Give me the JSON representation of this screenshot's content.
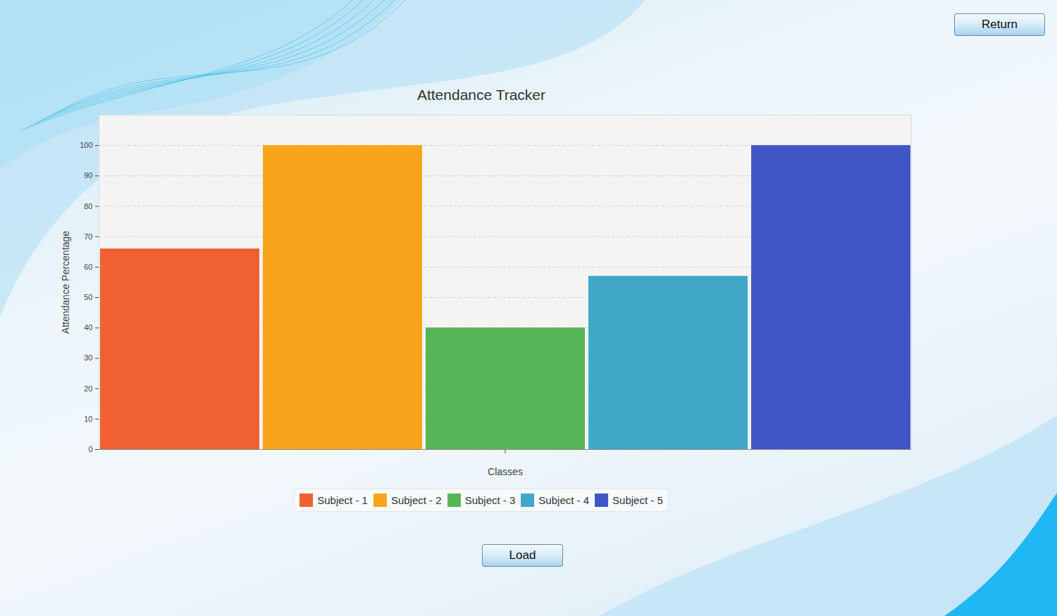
{
  "chart_data": {
    "type": "bar",
    "title": "Attendance Tracker",
    "x_label": "Classes",
    "y_label": "Attendance Percentage",
    "categories": [
      null
    ],
    "series": [
      {
        "name": "Subject - 1",
        "color": "#f06030",
        "values": [
          66
        ]
      },
      {
        "name": "Subject - 2",
        "color": "#f8a51c",
        "values": [
          100
        ]
      },
      {
        "name": "Subject - 3",
        "color": "#57b557",
        "values": [
          40
        ]
      },
      {
        "name": "Subject - 4",
        "color": "#41a7c6",
        "values": [
          57
        ]
      },
      {
        "name": "Subject - 5",
        "color": "#4056c7",
        "values": [
          100
        ]
      }
    ],
    "ylim": [
      0,
      110
    ],
    "yticks": [
      0,
      10,
      20,
      30,
      40,
      50,
      60,
      70,
      80,
      90,
      100
    ],
    "grid": true,
    "legend": "bottom"
  },
  "buttons": [
    "Return",
    "Load"
  ]
}
